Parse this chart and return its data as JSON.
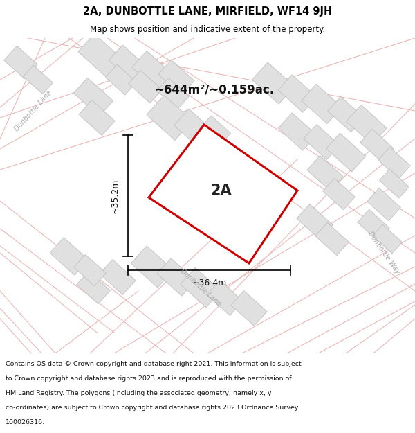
{
  "title": "2A, DUNBOTTLE LANE, MIRFIELD, WF14 9JH",
  "subtitle": "Map shows position and indicative extent of the property.",
  "area_label": "~644m²/~0.159ac.",
  "plot_label": "2A",
  "dim_width": "~36.4m",
  "dim_height": "~35.2m",
  "map_bg": "#f7f6f6",
  "road_line_color": "#e8b8b8",
  "plot_fill": "#ffffff",
  "plot_edge_color": "#cc0000",
  "building_fill": "#e0e0e0",
  "building_edge": "#c0c0c0",
  "inner_fill": "#e8e8e8",
  "inner_edge": "#c8c8c8",
  "footer_lines": [
    "Contains OS data © Crown copyright and database right 2021. This information is subject",
    "to Crown copyright and database rights 2023 and is reproduced with the permission of",
    "HM Land Registry. The polygons (including the associated geometry, namely x, y",
    "co-ordinates) are subject to Crown copyright and database rights 2023 Ordnance Survey",
    "100026316."
  ]
}
